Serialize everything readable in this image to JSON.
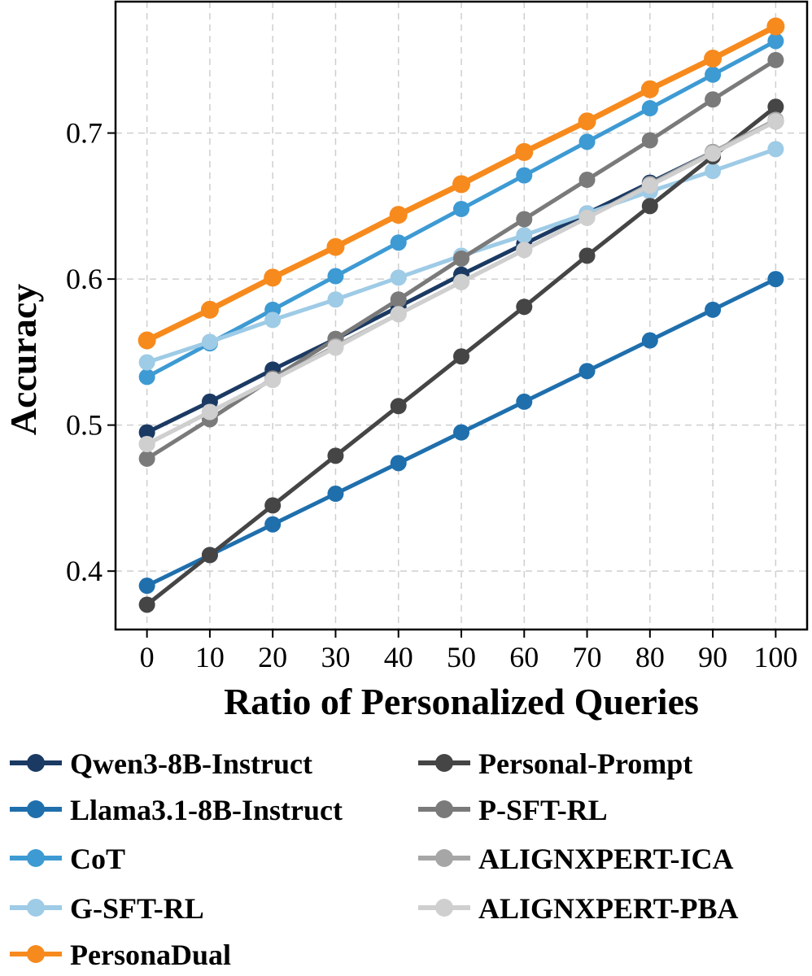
{
  "chart_data": {
    "type": "line",
    "xlabel": "Ratio of Personalized Queries",
    "ylabel": "Accuracy",
    "x": [
      0,
      10,
      20,
      30,
      40,
      50,
      60,
      70,
      80,
      90,
      100
    ],
    "x_tick_labels": [
      "0",
      "10",
      "20",
      "30",
      "40",
      "50",
      "60",
      "70",
      "80",
      "90",
      "100"
    ],
    "y_ticks": [
      0.4,
      0.5,
      0.6,
      0.7
    ],
    "y_tick_labels": [
      "0.4",
      "0.5",
      "0.6",
      "0.7"
    ],
    "xlim": [
      -5,
      105
    ],
    "ylim": [
      0.36,
      0.79
    ],
    "grid": true,
    "legend_position": "bottom",
    "series": [
      {
        "name": "Qwen3-8B-Instruct",
        "color": "#1b3a63",
        "values": [
          0.495,
          0.516,
          0.538,
          0.559,
          0.581,
          0.603,
          0.624,
          0.645,
          0.666,
          0.687,
          0.708
        ]
      },
      {
        "name": "Llama3.1-8B-Instruct",
        "color": "#1f6fad",
        "values": [
          0.39,
          0.411,
          0.432,
          0.453,
          0.474,
          0.495,
          0.516,
          0.537,
          0.558,
          0.579,
          0.6
        ]
      },
      {
        "name": "CoT",
        "color": "#3d9ad3",
        "values": [
          0.533,
          0.556,
          0.579,
          0.602,
          0.625,
          0.648,
          0.671,
          0.694,
          0.717,
          0.74,
          0.763
        ]
      },
      {
        "name": "G-SFT-RL",
        "color": "#9ecbe6",
        "values": [
          0.543,
          0.557,
          0.572,
          0.586,
          0.601,
          0.616,
          0.63,
          0.645,
          0.66,
          0.674,
          0.689
        ]
      },
      {
        "name": "PersonaDual",
        "color": "#f78a1d",
        "values": [
          0.558,
          0.579,
          0.601,
          0.622,
          0.644,
          0.665,
          0.687,
          0.708,
          0.73,
          0.751,
          0.773
        ]
      },
      {
        "name": "Personal-Prompt",
        "color": "#454545",
        "values": [
          0.377,
          0.411,
          0.445,
          0.479,
          0.513,
          0.547,
          0.581,
          0.616,
          0.65,
          0.684,
          0.718
        ]
      },
      {
        "name": "P-SFT-RL",
        "color": "#7a7a7a",
        "values": [
          0.477,
          0.504,
          0.532,
          0.559,
          0.586,
          0.614,
          0.641,
          0.668,
          0.695,
          0.723,
          0.75
        ]
      },
      {
        "name": "ALIGNXPERT-ICA",
        "color": "#a6a6a6",
        "values": [
          0.487,
          0.509,
          0.531,
          0.554,
          0.576,
          0.598,
          0.62,
          0.642,
          0.665,
          0.687,
          0.709
        ]
      },
      {
        "name": "ALIGNXPERT-PBA",
        "color": "#cfcfcf",
        "values": [
          0.487,
          0.509,
          0.531,
          0.553,
          0.576,
          0.598,
          0.62,
          0.642,
          0.664,
          0.686,
          0.708
        ]
      }
    ]
  }
}
